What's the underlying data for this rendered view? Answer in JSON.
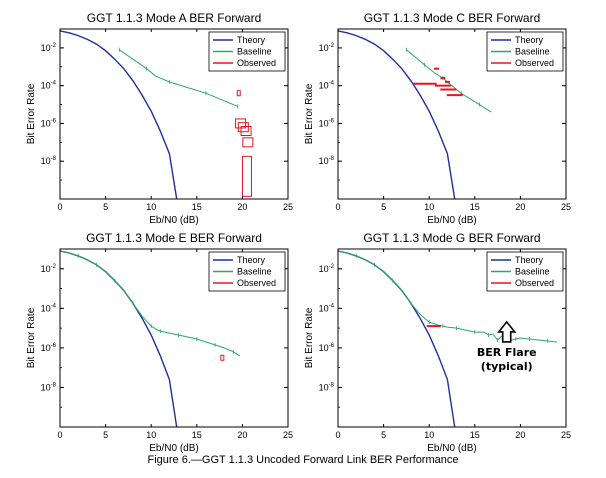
{
  "caption": "Figure 6.—GGT 1.1.3 Uncoded Forward Link BER Performance",
  "colors": {
    "theory": "#1f2f9e",
    "baseline": "#2ba86a",
    "observed": "#e0181e"
  },
  "chart_data": [
    {
      "type": "line",
      "title": "GGT 1.1.3 Mode A BER Forward",
      "xlabel": "Eb/N0 (dB)",
      "ylabel": "Bit Error Rate",
      "xlim": [
        0,
        25
      ],
      "ylim_log10": [
        -10,
        -1
      ],
      "yscale": "log",
      "xticks": [
        0,
        5,
        10,
        15,
        20,
        25
      ],
      "yticks_exp": [
        -2,
        -4,
        -6,
        -8
      ],
      "legend": [
        "Theory",
        "Baseline",
        "Observed"
      ],
      "legend_position": "top-right",
      "series": [
        {
          "name": "Theory",
          "x": [
            0,
            1,
            2,
            3,
            4,
            5,
            6,
            7,
            8,
            9,
            10,
            11,
            12,
            12.8
          ],
          "log10_y": [
            -1.1,
            -1.2,
            -1.35,
            -1.55,
            -1.8,
            -2.15,
            -2.6,
            -3.1,
            -3.75,
            -4.5,
            -5.35,
            -6.4,
            -7.6,
            -10
          ]
        },
        {
          "name": "Baseline",
          "x": [
            6.5,
            8,
            9.5,
            10.5,
            12,
            14,
            16,
            18,
            19.5
          ],
          "log10_y": [
            -2.1,
            -2.6,
            -3.1,
            -3.5,
            -3.8,
            -4.1,
            -4.4,
            -4.8,
            -5.1
          ]
        },
        {
          "name": "Observed",
          "markers": "squares",
          "x": [
            19.6,
            19.8,
            20.1,
            20.4,
            20.6,
            20.5
          ],
          "log10_y": [
            -4.4,
            -6.0,
            -6.2,
            -6.4,
            -7.0,
            -8.8
          ]
        }
      ],
      "annotations": []
    },
    {
      "type": "line",
      "title": "GGT 1.1.3 Mode C BER Forward",
      "xlabel": "Eb/N0 (dB)",
      "ylabel": "Bit Error Rate",
      "xlim": [
        0,
        25
      ],
      "ylim_log10": [
        -10,
        -1
      ],
      "yscale": "log",
      "xticks": [
        0,
        5,
        10,
        15,
        20,
        25
      ],
      "yticks_exp": [
        -2,
        -4,
        -6,
        -8
      ],
      "legend": [
        "Theory",
        "Baseline",
        "Observed"
      ],
      "legend_position": "top-right",
      "series": [
        {
          "name": "Theory",
          "x": [
            0,
            1,
            2,
            3,
            4,
            5,
            6,
            7,
            8,
            9,
            10,
            11,
            12,
            12.8
          ],
          "log10_y": [
            -1.1,
            -1.2,
            -1.35,
            -1.55,
            -1.8,
            -2.15,
            -2.6,
            -3.1,
            -3.75,
            -4.5,
            -5.35,
            -6.4,
            -7.6,
            -10
          ]
        },
        {
          "name": "Baseline",
          "x": [
            7.5,
            8.5,
            9.5,
            10.5,
            11.5,
            12.5,
            13.5,
            14.5,
            15.5,
            16.8
          ],
          "log10_y": [
            -2.1,
            -2.5,
            -2.9,
            -3.3,
            -3.6,
            -4.0,
            -4.4,
            -4.7,
            -5.0,
            -5.4
          ]
        },
        {
          "name": "Observed",
          "markers": "dashes",
          "x": [
            10.8,
            11.5,
            12.0,
            9.5,
            11.5,
            12.1,
            12.8
          ],
          "log10_y": [
            -3.1,
            -3.6,
            -3.8,
            -3.9,
            -4.0,
            -4.2,
            -4.5
          ]
        }
      ],
      "annotations": []
    },
    {
      "type": "line",
      "title": "GGT 1.1.3 Mode E BER Forward",
      "xlabel": "Eb/N0 (dB)",
      "ylabel": "Bit Error Rate",
      "xlim": [
        0,
        25
      ],
      "ylim_log10": [
        -10,
        -1
      ],
      "yscale": "log",
      "xticks": [
        0,
        5,
        10,
        15,
        20,
        25
      ],
      "yticks_exp": [
        -2,
        -4,
        -6,
        -8
      ],
      "legend": [
        "Theory",
        "Baseline",
        "Observed"
      ],
      "legend_position": "top-right",
      "series": [
        {
          "name": "Theory",
          "x": [
            0,
            1,
            2,
            3,
            4,
            5,
            6,
            7,
            8,
            9,
            10,
            11,
            12,
            12.8
          ],
          "log10_y": [
            -1.1,
            -1.2,
            -1.35,
            -1.55,
            -1.8,
            -2.15,
            -2.6,
            -3.1,
            -3.75,
            -4.5,
            -5.35,
            -6.4,
            -7.6,
            -10
          ]
        },
        {
          "name": "Baseline",
          "x": [
            0,
            1,
            2,
            3,
            4,
            5,
            6,
            7,
            8,
            9,
            10,
            10.5,
            11,
            12,
            13,
            14,
            15,
            16,
            17,
            18,
            19,
            19.7
          ],
          "log10_y": [
            -1.1,
            -1.2,
            -1.35,
            -1.55,
            -1.8,
            -2.15,
            -2.6,
            -3.1,
            -3.75,
            -4.4,
            -4.9,
            -5.05,
            -5.15,
            -5.25,
            -5.35,
            -5.45,
            -5.55,
            -5.7,
            -5.85,
            -6.0,
            -6.2,
            -6.4
          ]
        },
        {
          "name": "Observed",
          "markers": "squares",
          "x": [
            17.8
          ],
          "log10_y": [
            -6.5
          ]
        }
      ],
      "annotations": []
    },
    {
      "type": "line",
      "title": "GGT 1.1.3 Mode G BER Forward",
      "xlabel": "Eb/N0 (dB)",
      "ylabel": "Bit Error Rate",
      "xlim": [
        0,
        25
      ],
      "ylim_log10": [
        -10,
        -1
      ],
      "yscale": "log",
      "xticks": [
        0,
        5,
        10,
        15,
        20,
        25
      ],
      "yticks_exp": [
        -2,
        -4,
        -6,
        -8
      ],
      "legend": [
        "Theory",
        "Baseline",
        "Observed"
      ],
      "legend_position": "top-right",
      "series": [
        {
          "name": "Theory",
          "x": [
            0,
            1,
            2,
            3,
            4,
            5,
            6,
            7,
            8,
            9,
            10,
            11,
            12,
            12.8
          ],
          "log10_y": [
            -1.1,
            -1.2,
            -1.35,
            -1.55,
            -1.8,
            -2.15,
            -2.6,
            -3.1,
            -3.75,
            -4.5,
            -5.35,
            -6.4,
            -7.6,
            -10
          ]
        },
        {
          "name": "Baseline",
          "x": [
            0,
            1,
            2,
            3,
            4,
            5,
            6,
            7,
            8,
            9,
            10,
            11,
            11.5,
            12,
            13,
            14,
            15,
            16,
            16.5,
            17,
            17.5,
            18,
            18.5,
            19,
            19.5,
            20,
            21,
            22,
            23,
            24
          ],
          "log10_y": [
            -1.1,
            -1.2,
            -1.35,
            -1.55,
            -1.8,
            -2.15,
            -2.6,
            -3.1,
            -3.75,
            -4.3,
            -4.7,
            -4.85,
            -4.9,
            -4.95,
            -5.0,
            -5.1,
            -5.2,
            -5.2,
            -5.35,
            -5.3,
            -5.6,
            -5.4,
            -5.5,
            -5.6,
            -5.55,
            -5.5,
            -5.55,
            -5.6,
            -5.65,
            -5.7
          ]
        },
        {
          "name": "Observed",
          "markers": "dashes",
          "x": [
            10.5
          ],
          "log10_y": [
            -4.9
          ]
        }
      ],
      "annotations": [
        {
          "text": [
            "BER Flare",
            "(typical)"
          ],
          "x": 18.5,
          "log10_y": -5.9
        }
      ]
    }
  ]
}
